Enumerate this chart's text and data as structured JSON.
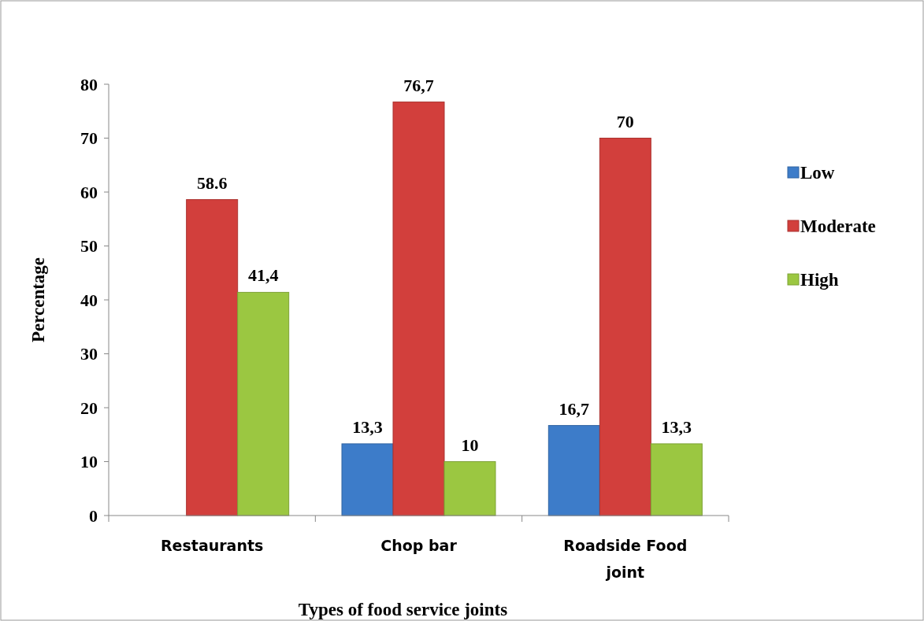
{
  "chart_data": {
    "type": "bar",
    "xlabel": "Types of food service joints",
    "ylabel": "Percentage",
    "categories": [
      "Restaurants",
      "Chop bar",
      "Roadside Food joint"
    ],
    "series": [
      {
        "name": "Low",
        "color": "#3d7cc9",
        "values": [
          null,
          13.3,
          16.7
        ],
        "value_labels": [
          null,
          "13,3",
          "16,7"
        ]
      },
      {
        "name": "Moderate",
        "color": "#d23f3c",
        "values": [
          58.6,
          76.7,
          70
        ],
        "value_labels": [
          "58.6",
          "76,7",
          "70"
        ]
      },
      {
        "name": "High",
        "color": "#9bc741",
        "values": [
          41.4,
          10,
          13.3
        ],
        "value_labels": [
          "41,4",
          "10",
          "13,3"
        ]
      }
    ],
    "ylim": [
      0,
      80
    ],
    "yticks": [
      0,
      10,
      20,
      30,
      40,
      50,
      60,
      70,
      80
    ],
    "legend": "right"
  }
}
